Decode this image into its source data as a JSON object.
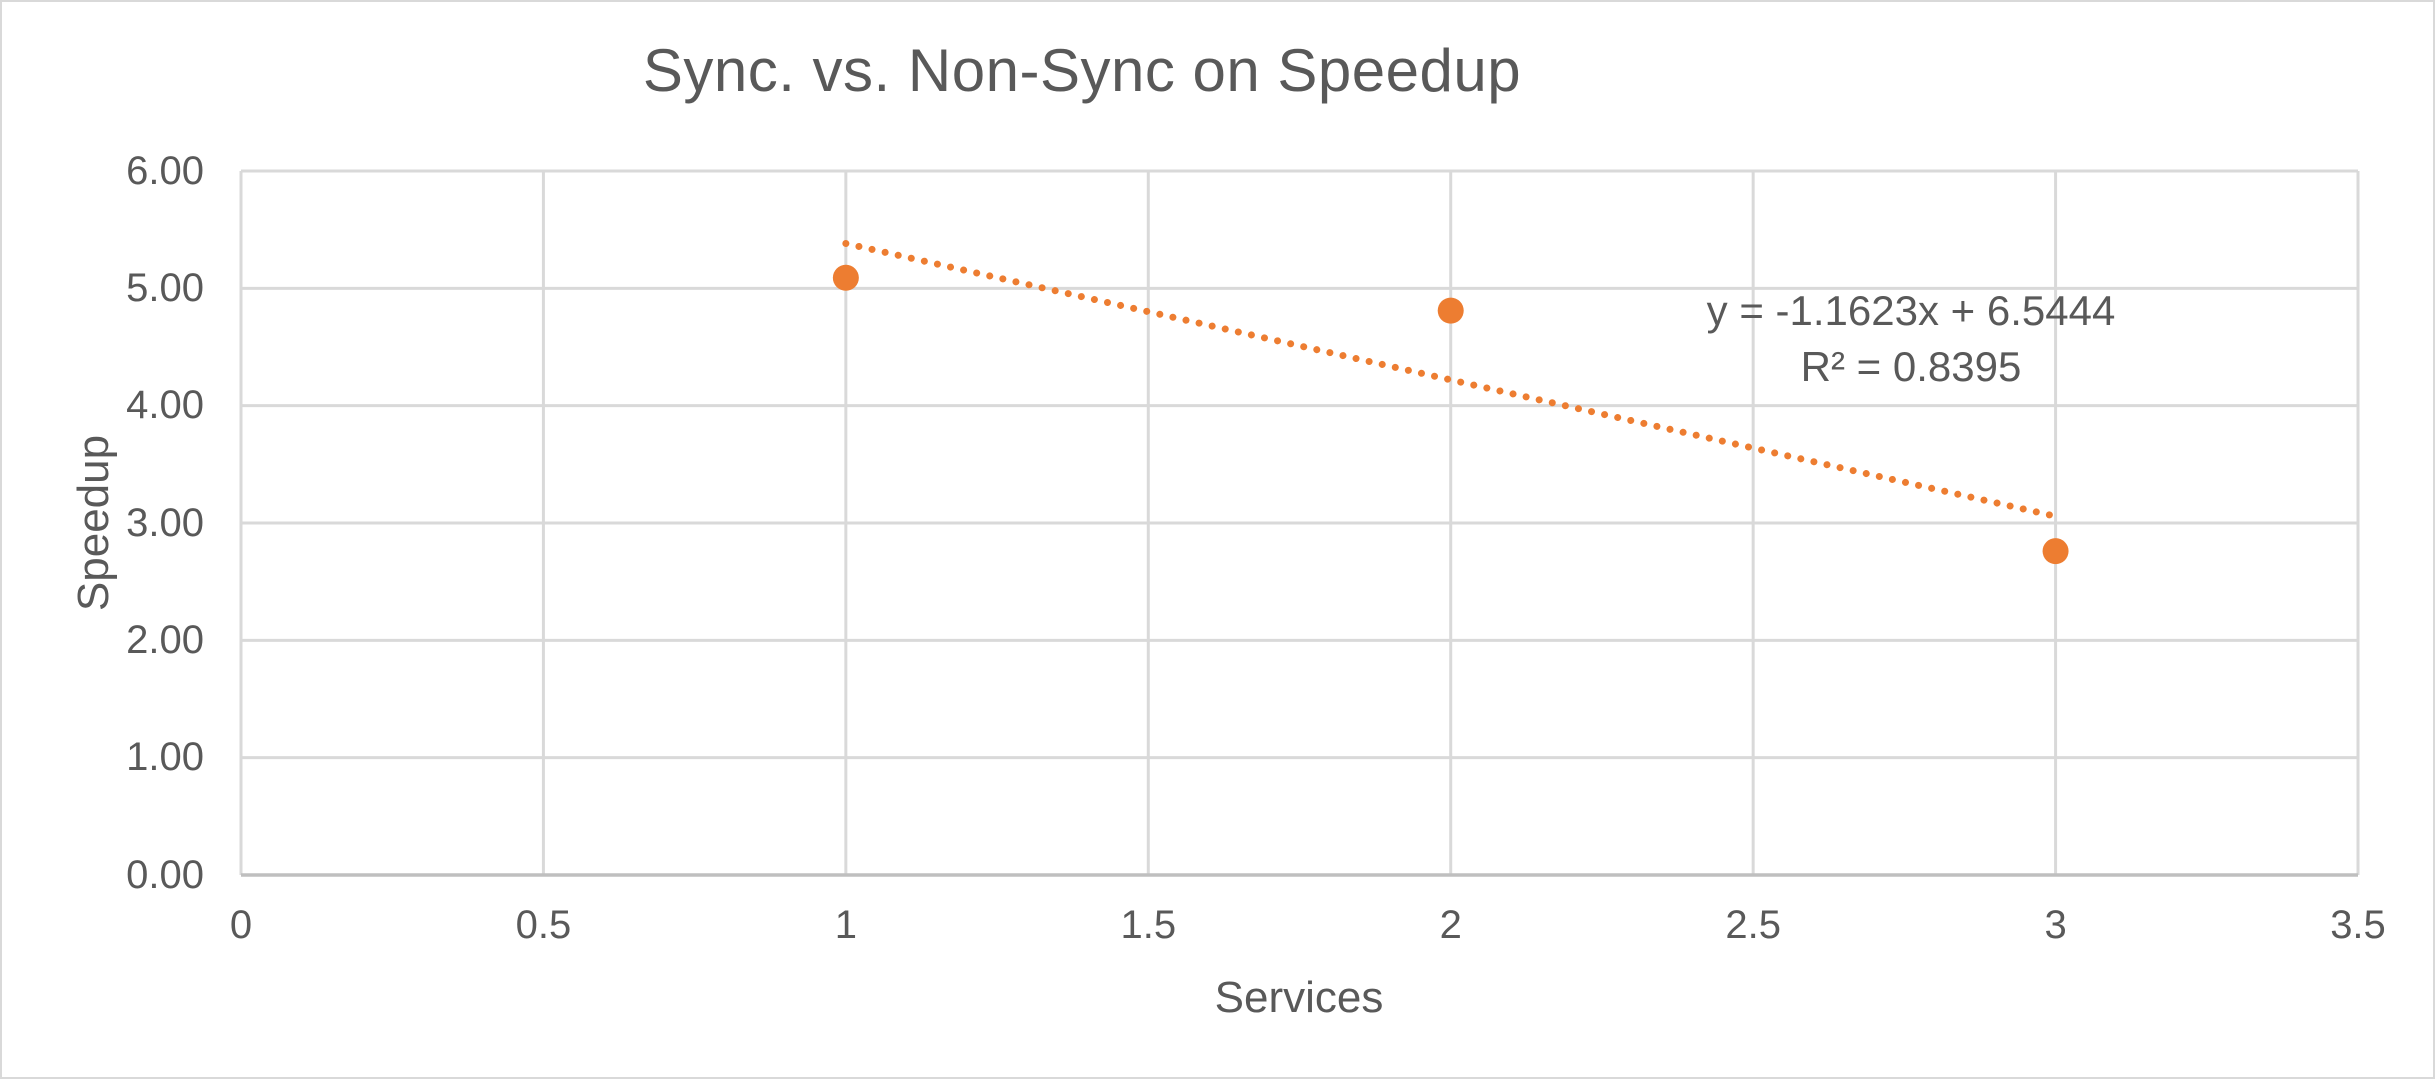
{
  "chart_data": {
    "type": "scatter",
    "title": "Sync. vs. Non-Sync on Speedup",
    "xlabel": "Services",
    "ylabel": "Speedup",
    "x": [
      1,
      2,
      3
    ],
    "y": [
      5.09,
      4.81,
      2.76
    ],
    "xlim": [
      0,
      3.5
    ],
    "ylim": [
      0,
      6
    ],
    "x_ticks": [
      0,
      0.5,
      1,
      1.5,
      2,
      2.5,
      3,
      3.5
    ],
    "x_tick_labels": [
      "0",
      "0.5",
      "1",
      "1.5",
      "2",
      "2.5",
      "3",
      "3.5"
    ],
    "y_ticks": [
      0,
      1,
      2,
      3,
      4,
      5,
      6
    ],
    "y_tick_labels": [
      "0.00",
      "1.00",
      "2.00",
      "3.00",
      "4.00",
      "5.00",
      "6.00"
    ],
    "grid": true,
    "legend": "none",
    "marker_color": "#ED7D31",
    "trendline": {
      "type": "linear",
      "slope": -1.1623,
      "intercept": 6.5444,
      "x_start": 1,
      "x_end": 3,
      "style": "dotted",
      "color": "#ED7D31",
      "equation_label": "y = -1.1623x + 6.5444",
      "r2_label": "R² = 0.8395"
    },
    "colors": {
      "accent": "#ED7D31",
      "text": "#595959",
      "gridline": "#D9D9D9",
      "axis_line": "#BFBFBF",
      "border": "#D9D9D9",
      "background": "#FFFFFF"
    }
  }
}
